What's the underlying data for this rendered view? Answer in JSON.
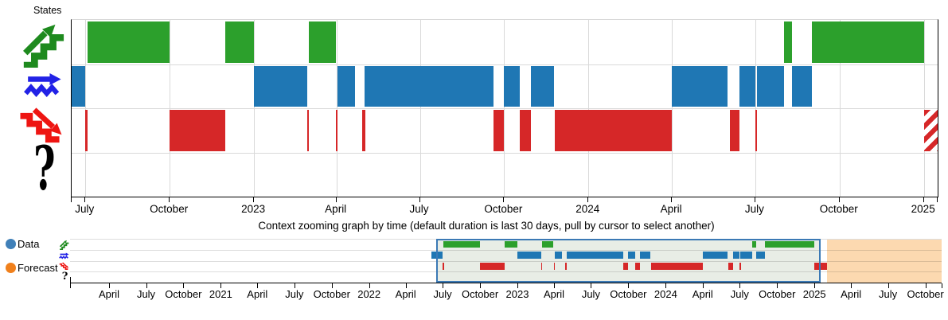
{
  "states_label": "States",
  "context_title": "Context zooming graph by time (default duration is last 30 days, pull by cursor to select another)",
  "legend": {
    "data_label": "Data",
    "data_color": "#4080b8",
    "forecast_label": "Forecast",
    "forecast_color": "#f0801c"
  },
  "colors": {
    "state_colors": {
      "uptrend": "#2ca02c",
      "sideways": "#1f77b4",
      "downtrend": "#d62728"
    },
    "icon_colors": {
      "uptrend": "#1e8a1e",
      "sideways": "#2222e6",
      "downtrend": "#ee1512",
      "unknown": "#111111"
    },
    "grid": "#d9d9d9",
    "selection_fill": "#e8ede6",
    "selection_border": "#3b79b5",
    "forecast_region_fill": "#fcd9b0",
    "hatch_white": "#ffffff"
  },
  "chart_data": {
    "type": "gantt-timeline",
    "rows": [
      {
        "state": "uptrend",
        "icon": "uptrend-icon"
      },
      {
        "state": "sideways",
        "icon": "sideways-icon"
      },
      {
        "state": "downtrend",
        "icon": "downtrend-icon"
      },
      {
        "state": "unknown",
        "icon": "question-icon"
      }
    ],
    "intervals": [
      {
        "state": "sideways",
        "start": "2022-06-03",
        "end": "2022-07-01"
      },
      {
        "state": "downtrend",
        "start": "2022-07-01",
        "end": "2022-07-03"
      },
      {
        "state": "uptrend",
        "start": "2022-07-03",
        "end": "2022-10-01"
      },
      {
        "state": "downtrend",
        "start": "2022-10-01",
        "end": "2022-12-01"
      },
      {
        "state": "uptrend",
        "start": "2022-12-01",
        "end": "2023-01-01"
      },
      {
        "state": "sideways",
        "start": "2023-01-01",
        "end": "2023-02-28"
      },
      {
        "state": "downtrend",
        "start": "2023-02-28",
        "end": "2023-03-02"
      },
      {
        "state": "uptrend",
        "start": "2023-03-02",
        "end": "2023-03-31"
      },
      {
        "state": "downtrend",
        "start": "2023-03-31",
        "end": "2023-04-02"
      },
      {
        "state": "sideways",
        "start": "2023-04-02",
        "end": "2023-04-21"
      },
      {
        "state": "downtrend",
        "start": "2023-04-29",
        "end": "2023-05-02"
      },
      {
        "state": "sideways",
        "start": "2023-05-02",
        "end": "2023-09-19"
      },
      {
        "state": "downtrend",
        "start": "2023-09-19",
        "end": "2023-10-01"
      },
      {
        "state": "sideways",
        "start": "2023-10-01",
        "end": "2023-10-18"
      },
      {
        "state": "downtrend",
        "start": "2023-10-18",
        "end": "2023-10-30"
      },
      {
        "state": "sideways",
        "start": "2023-10-30",
        "end": "2023-11-24"
      },
      {
        "state": "downtrend",
        "start": "2023-11-25",
        "end": "2024-04-01"
      },
      {
        "state": "sideways",
        "start": "2024-04-01",
        "end": "2024-06-01"
      },
      {
        "state": "downtrend",
        "start": "2024-06-03",
        "end": "2024-06-14"
      },
      {
        "state": "sideways",
        "start": "2024-06-14",
        "end": "2024-07-01"
      },
      {
        "state": "downtrend",
        "start": "2024-07-01",
        "end": "2024-07-03"
      },
      {
        "state": "sideways",
        "start": "2024-07-03",
        "end": "2024-08-01"
      },
      {
        "state": "uptrend",
        "start": "2024-08-01",
        "end": "2024-08-10"
      },
      {
        "state": "sideways",
        "start": "2024-08-10",
        "end": "2024-09-01"
      },
      {
        "state": "uptrend",
        "start": "2024-09-01",
        "end": "2025-01-01"
      },
      {
        "state": "downtrend",
        "start": "2025-01-01",
        "end": "2025-02-01",
        "forecast": true
      }
    ],
    "main_axis": {
      "domain": [
        "2022-06-16",
        "2025-01-16"
      ],
      "ticks": [
        {
          "date": "2022-07-01",
          "label": "July"
        },
        {
          "date": "2022-10-01",
          "label": "October"
        },
        {
          "date": "2023-01-01",
          "label": "2023"
        },
        {
          "date": "2023-04-01",
          "label": "April"
        },
        {
          "date": "2023-07-01",
          "label": "July"
        },
        {
          "date": "2023-10-01",
          "label": "October"
        },
        {
          "date": "2024-01-01",
          "label": "2024"
        },
        {
          "date": "2024-04-01",
          "label": "April"
        },
        {
          "date": "2024-07-01",
          "label": "July"
        },
        {
          "date": "2024-10-01",
          "label": "October"
        },
        {
          "date": "2025-01-01",
          "label": "2025"
        }
      ]
    },
    "context_axis": {
      "domain": [
        "2019-12-27",
        "2025-11-10"
      ],
      "ticks": [
        {
          "date": "2020-04-01",
          "label": "April"
        },
        {
          "date": "2020-07-01",
          "label": "July"
        },
        {
          "date": "2020-10-01",
          "label": "October"
        },
        {
          "date": "2021-01-01",
          "label": "2021"
        },
        {
          "date": "2021-04-01",
          "label": "April"
        },
        {
          "date": "2021-07-01",
          "label": "July"
        },
        {
          "date": "2021-10-01",
          "label": "October"
        },
        {
          "date": "2022-01-01",
          "label": "2022"
        },
        {
          "date": "2022-04-01",
          "label": "April"
        },
        {
          "date": "2022-07-01",
          "label": "July"
        },
        {
          "date": "2022-10-01",
          "label": "October"
        },
        {
          "date": "2023-01-01",
          "label": "2023"
        },
        {
          "date": "2023-04-01",
          "label": "April"
        },
        {
          "date": "2023-07-01",
          "label": "July"
        },
        {
          "date": "2023-10-01",
          "label": "October"
        },
        {
          "date": "2024-01-01",
          "label": "2024"
        },
        {
          "date": "2024-04-01",
          "label": "April"
        },
        {
          "date": "2024-07-01",
          "label": "July"
        },
        {
          "date": "2024-10-01",
          "label": "October"
        },
        {
          "date": "2025-01-01",
          "label": "2025"
        },
        {
          "date": "2025-04-01",
          "label": "April"
        },
        {
          "date": "2025-07-01",
          "label": "July"
        },
        {
          "date": "2025-10-01",
          "label": "October"
        }
      ]
    },
    "selection": {
      "start": "2022-06-16",
      "end": "2025-01-16"
    },
    "forecast_region": {
      "start": "2025-02-01",
      "end": "2025-11-10"
    }
  }
}
